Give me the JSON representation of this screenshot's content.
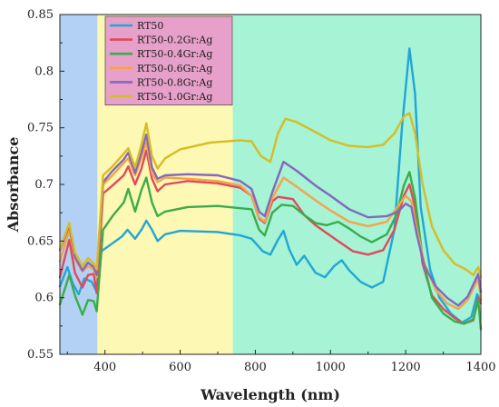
{
  "chart_data": {
    "type": "line",
    "title": "",
    "xlabel": "Wavelength (nm)",
    "ylabel": "Absorbance",
    "xlim": [
      280,
      1400
    ],
    "ylim": [
      0.55,
      0.85
    ],
    "xticks": [
      400,
      600,
      800,
      1000,
      1200,
      1400
    ],
    "xtick_labels": [
      "400",
      "600",
      "800",
      "1000",
      "1200",
      "1400"
    ],
    "yticks": [
      0.55,
      0.6,
      0.65,
      0.7,
      0.75,
      0.8,
      0.85
    ],
    "ytick_labels": [
      "0.55",
      "0.6",
      "0.65",
      "0.7",
      "0.75",
      "0.8",
      "0.85"
    ],
    "grid": false,
    "legend_position": "top-left",
    "regions": [
      {
        "x0": 280,
        "x1": 380,
        "color": "#b3d1f5"
      },
      {
        "x0": 380,
        "x1": 740,
        "color": "#fdf8b3"
      },
      {
        "x0": 740,
        "x1": 1400,
        "color": "#a6f3d6"
      }
    ],
    "series": [
      {
        "name": "RT50",
        "color": "#22a6d6",
        "points": [
          [
            280,
            0.61
          ],
          [
            300,
            0.627
          ],
          [
            315,
            0.612
          ],
          [
            330,
            0.603
          ],
          [
            345,
            0.617
          ],
          [
            365,
            0.614
          ],
          [
            378,
            0.605
          ],
          [
            390,
            0.641
          ],
          [
            420,
            0.648
          ],
          [
            445,
            0.654
          ],
          [
            460,
            0.66
          ],
          [
            480,
            0.652
          ],
          [
            497,
            0.66
          ],
          [
            510,
            0.668
          ],
          [
            525,
            0.66
          ],
          [
            540,
            0.65
          ],
          [
            560,
            0.656
          ],
          [
            600,
            0.659
          ],
          [
            700,
            0.658
          ],
          [
            760,
            0.655
          ],
          [
            790,
            0.652
          ],
          [
            820,
            0.641
          ],
          [
            840,
            0.638
          ],
          [
            860,
            0.651
          ],
          [
            875,
            0.659
          ],
          [
            890,
            0.643
          ],
          [
            910,
            0.629
          ],
          [
            930,
            0.637
          ],
          [
            960,
            0.622
          ],
          [
            985,
            0.618
          ],
          [
            1010,
            0.628
          ],
          [
            1030,
            0.633
          ],
          [
            1050,
            0.624
          ],
          [
            1080,
            0.614
          ],
          [
            1110,
            0.609
          ],
          [
            1140,
            0.614
          ],
          [
            1170,
            0.66
          ],
          [
            1190,
            0.75
          ],
          [
            1210,
            0.82
          ],
          [
            1225,
            0.78
          ],
          [
            1240,
            0.68
          ],
          [
            1265,
            0.625
          ],
          [
            1290,
            0.6
          ],
          [
            1320,
            0.586
          ],
          [
            1350,
            0.578
          ],
          [
            1375,
            0.583
          ],
          [
            1390,
            0.603
          ],
          [
            1400,
            0.598
          ]
        ]
      },
      {
        "name": "RT50-0.2Gr:Ag",
        "color": "#e04a5a",
        "points": [
          [
            280,
            0.618
          ],
          [
            305,
            0.651
          ],
          [
            320,
            0.622
          ],
          [
            340,
            0.609
          ],
          [
            355,
            0.62
          ],
          [
            370,
            0.621
          ],
          [
            378,
            0.604
          ],
          [
            395,
            0.692
          ],
          [
            420,
            0.699
          ],
          [
            450,
            0.708
          ],
          [
            462,
            0.716
          ],
          [
            480,
            0.7
          ],
          [
            497,
            0.714
          ],
          [
            510,
            0.73
          ],
          [
            525,
            0.705
          ],
          [
            540,
            0.694
          ],
          [
            560,
            0.7
          ],
          [
            620,
            0.703
          ],
          [
            700,
            0.701
          ],
          [
            760,
            0.697
          ],
          [
            790,
            0.69
          ],
          [
            810,
            0.67
          ],
          [
            825,
            0.666
          ],
          [
            845,
            0.685
          ],
          [
            860,
            0.689
          ],
          [
            900,
            0.687
          ],
          [
            930,
            0.673
          ],
          [
            960,
            0.664
          ],
          [
            990,
            0.657
          ],
          [
            1020,
            0.65
          ],
          [
            1060,
            0.641
          ],
          [
            1100,
            0.638
          ],
          [
            1140,
            0.642
          ],
          [
            1170,
            0.66
          ],
          [
            1195,
            0.69
          ],
          [
            1210,
            0.7
          ],
          [
            1225,
            0.68
          ],
          [
            1245,
            0.63
          ],
          [
            1270,
            0.602
          ],
          [
            1300,
            0.59
          ],
          [
            1330,
            0.582
          ],
          [
            1355,
            0.577
          ],
          [
            1380,
            0.58
          ],
          [
            1393,
            0.6
          ],
          [
            1400,
            0.595
          ]
        ]
      },
      {
        "name": "RT50-0.4Gr:Ag",
        "color": "#3aad4a",
        "points": [
          [
            280,
            0.594
          ],
          [
            305,
            0.62
          ],
          [
            320,
            0.602
          ],
          [
            340,
            0.585
          ],
          [
            355,
            0.598
          ],
          [
            370,
            0.597
          ],
          [
            378,
            0.588
          ],
          [
            395,
            0.66
          ],
          [
            420,
            0.672
          ],
          [
            450,
            0.684
          ],
          [
            462,
            0.696
          ],
          [
            480,
            0.676
          ],
          [
            497,
            0.695
          ],
          [
            510,
            0.706
          ],
          [
            525,
            0.684
          ],
          [
            540,
            0.672
          ],
          [
            560,
            0.676
          ],
          [
            620,
            0.68
          ],
          [
            700,
            0.681
          ],
          [
            760,
            0.679
          ],
          [
            790,
            0.678
          ],
          [
            810,
            0.66
          ],
          [
            825,
            0.655
          ],
          [
            845,
            0.675
          ],
          [
            870,
            0.682
          ],
          [
            900,
            0.681
          ],
          [
            930,
            0.673
          ],
          [
            960,
            0.666
          ],
          [
            990,
            0.664
          ],
          [
            1020,
            0.667
          ],
          [
            1050,
            0.661
          ],
          [
            1080,
            0.654
          ],
          [
            1110,
            0.649
          ],
          [
            1150,
            0.656
          ],
          [
            1175,
            0.673
          ],
          [
            1195,
            0.699
          ],
          [
            1210,
            0.711
          ],
          [
            1225,
            0.688
          ],
          [
            1245,
            0.635
          ],
          [
            1270,
            0.6
          ],
          [
            1300,
            0.586
          ],
          [
            1330,
            0.579
          ],
          [
            1355,
            0.577
          ],
          [
            1380,
            0.581
          ],
          [
            1393,
            0.598
          ],
          [
            1400,
            0.572
          ]
        ]
      },
      {
        "name": "RT50-0.6Gr:Ag",
        "color": "#f5a34a",
        "points": [
          [
            280,
            0.632
          ],
          [
            305,
            0.66
          ],
          [
            320,
            0.634
          ],
          [
            340,
            0.623
          ],
          [
            355,
            0.628
          ],
          [
            370,
            0.625
          ],
          [
            378,
            0.618
          ],
          [
            395,
            0.7
          ],
          [
            420,
            0.708
          ],
          [
            450,
            0.719
          ],
          [
            462,
            0.723
          ],
          [
            480,
            0.708
          ],
          [
            497,
            0.723
          ],
          [
            510,
            0.737
          ],
          [
            525,
            0.71
          ],
          [
            540,
            0.702
          ],
          [
            560,
            0.706
          ],
          [
            620,
            0.705
          ],
          [
            700,
            0.703
          ],
          [
            760,
            0.699
          ],
          [
            790,
            0.69
          ],
          [
            810,
            0.671
          ],
          [
            825,
            0.667
          ],
          [
            845,
            0.688
          ],
          [
            875,
            0.706
          ],
          [
            910,
            0.698
          ],
          [
            960,
            0.686
          ],
          [
            1000,
            0.677
          ],
          [
            1050,
            0.667
          ],
          [
            1100,
            0.663
          ],
          [
            1150,
            0.667
          ],
          [
            1180,
            0.681
          ],
          [
            1200,
            0.69
          ],
          [
            1215,
            0.685
          ],
          [
            1230,
            0.66
          ],
          [
            1250,
            0.63
          ],
          [
            1280,
            0.607
          ],
          [
            1310,
            0.595
          ],
          [
            1340,
            0.59
          ],
          [
            1365,
            0.598
          ],
          [
            1393,
            0.617
          ],
          [
            1400,
            0.6
          ]
        ]
      },
      {
        "name": "RT50-0.8Gr:Ag",
        "color": "#8368bc",
        "points": [
          [
            280,
            0.642
          ],
          [
            305,
            0.664
          ],
          [
            320,
            0.636
          ],
          [
            340,
            0.624
          ],
          [
            355,
            0.631
          ],
          [
            370,
            0.627
          ],
          [
            378,
            0.62
          ],
          [
            395,
            0.702
          ],
          [
            420,
            0.712
          ],
          [
            450,
            0.722
          ],
          [
            462,
            0.728
          ],
          [
            480,
            0.71
          ],
          [
            497,
            0.728
          ],
          [
            510,
            0.744
          ],
          [
            525,
            0.715
          ],
          [
            540,
            0.705
          ],
          [
            560,
            0.708
          ],
          [
            620,
            0.709
          ],
          [
            700,
            0.708
          ],
          [
            760,
            0.703
          ],
          [
            790,
            0.696
          ],
          [
            810,
            0.676
          ],
          [
            825,
            0.672
          ],
          [
            845,
            0.693
          ],
          [
            875,
            0.72
          ],
          [
            910,
            0.712
          ],
          [
            960,
            0.699
          ],
          [
            1000,
            0.69
          ],
          [
            1050,
            0.678
          ],
          [
            1100,
            0.671
          ],
          [
            1150,
            0.672
          ],
          [
            1180,
            0.676
          ],
          [
            1200,
            0.683
          ],
          [
            1215,
            0.68
          ],
          [
            1230,
            0.655
          ],
          [
            1250,
            0.628
          ],
          [
            1280,
            0.61
          ],
          [
            1310,
            0.6
          ],
          [
            1340,
            0.593
          ],
          [
            1365,
            0.601
          ],
          [
            1393,
            0.621
          ],
          [
            1400,
            0.605
          ]
        ]
      },
      {
        "name": "RT50-1.0Gr:Ag",
        "color": "#d6bd22",
        "points": [
          [
            280,
            0.643
          ],
          [
            305,
            0.666
          ],
          [
            320,
            0.64
          ],
          [
            340,
            0.628
          ],
          [
            355,
            0.635
          ],
          [
            370,
            0.63
          ],
          [
            378,
            0.625
          ],
          [
            395,
            0.708
          ],
          [
            420,
            0.716
          ],
          [
            450,
            0.727
          ],
          [
            462,
            0.732
          ],
          [
            480,
            0.715
          ],
          [
            497,
            0.735
          ],
          [
            510,
            0.754
          ],
          [
            525,
            0.725
          ],
          [
            540,
            0.714
          ],
          [
            560,
            0.723
          ],
          [
            600,
            0.731
          ],
          [
            680,
            0.737
          ],
          [
            760,
            0.739
          ],
          [
            790,
            0.738
          ],
          [
            815,
            0.725
          ],
          [
            840,
            0.72
          ],
          [
            860,
            0.745
          ],
          [
            880,
            0.758
          ],
          [
            910,
            0.755
          ],
          [
            950,
            0.748
          ],
          [
            1000,
            0.739
          ],
          [
            1050,
            0.734
          ],
          [
            1100,
            0.733
          ],
          [
            1140,
            0.735
          ],
          [
            1170,
            0.745
          ],
          [
            1195,
            0.76
          ],
          [
            1210,
            0.763
          ],
          [
            1225,
            0.745
          ],
          [
            1245,
            0.7
          ],
          [
            1270,
            0.663
          ],
          [
            1300,
            0.642
          ],
          [
            1330,
            0.63
          ],
          [
            1360,
            0.625
          ],
          [
            1380,
            0.62
          ],
          [
            1393,
            0.627
          ],
          [
            1400,
            0.618
          ]
        ]
      }
    ]
  }
}
